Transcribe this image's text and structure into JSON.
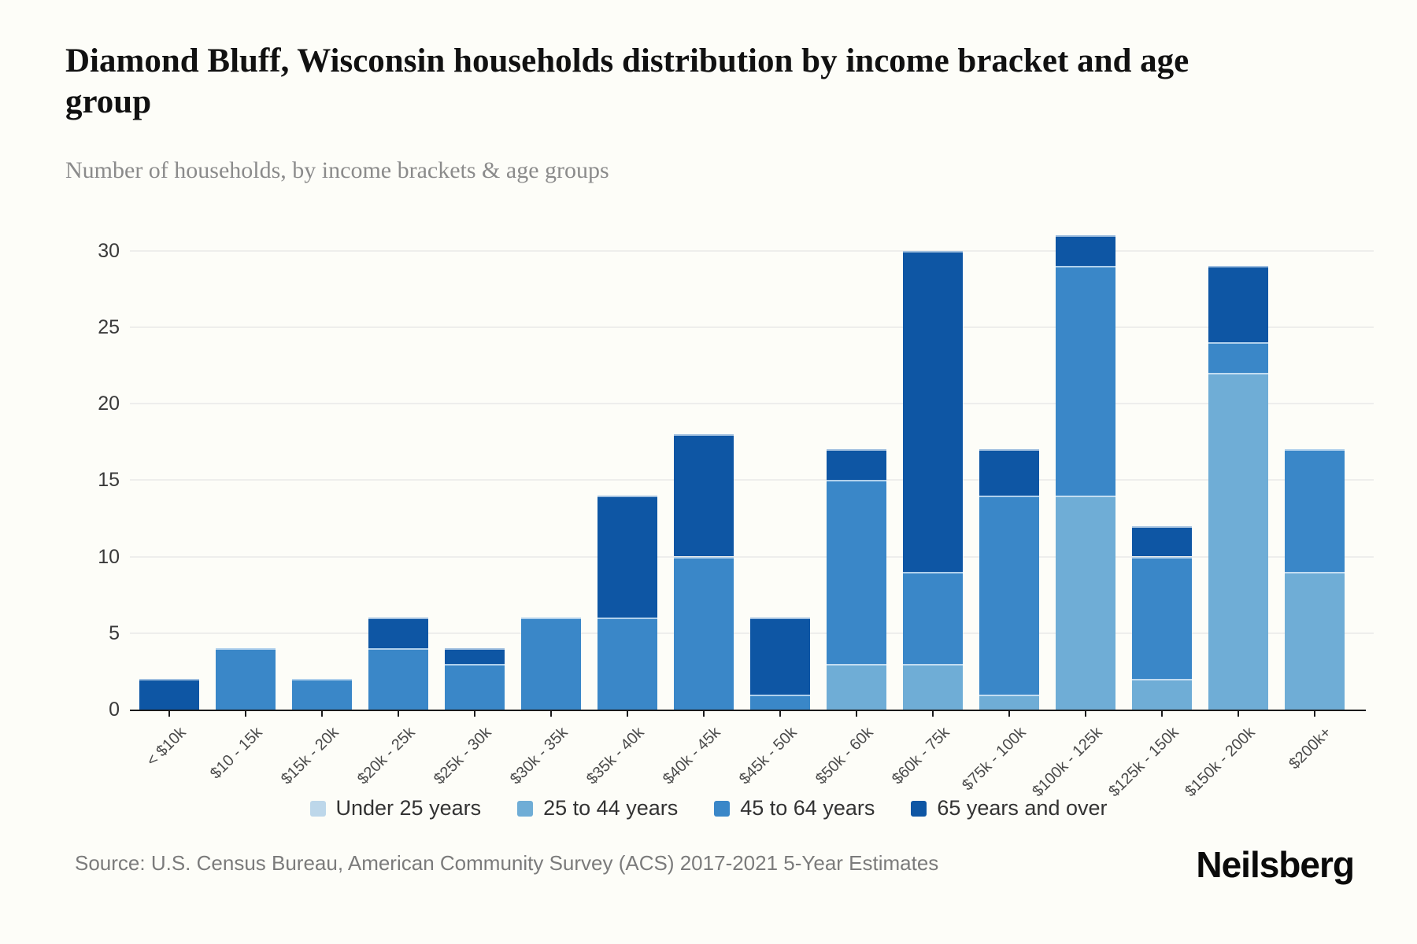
{
  "page": {
    "title": "Diamond Bluff, Wisconsin households distribution by income bracket and age group",
    "subtitle": "Number of households, by income brackets & age groups",
    "source": "Source: U.S. Census Bureau, American Community Survey (ACS) 2017-2021 5-Year Estimates",
    "brand": "Neilsberg"
  },
  "chart_data": {
    "type": "bar",
    "stacked": true,
    "title": "Diamond Bluff, Wisconsin households distribution by income bracket and age group",
    "subtitle": "Number of households, by income brackets & age groups",
    "xlabel": "",
    "ylabel": "Number of households",
    "ylim": [
      0,
      30
    ],
    "yticks": [
      0,
      5,
      10,
      15,
      20,
      25,
      30
    ],
    "grid": true,
    "legend_position": "bottom",
    "categories": [
      "< $10k",
      "$10 - 15k",
      "$15k - 20k",
      "$20k - 25k",
      "$25k - 30k",
      "$30k - 35k",
      "$35k - 40k",
      "$40k - 45k",
      "$45k - 50k",
      "$50k - 60k",
      "$60k - 75k",
      "$75k - 100k",
      "$100k - 125k",
      "$125k - 150k",
      "$150k - 200k",
      "$200k+"
    ],
    "series": [
      {
        "name": "Under 25 years",
        "color": "#bdd7ea",
        "values": [
          0,
          0,
          0,
          0,
          0,
          0,
          0,
          0,
          0,
          0,
          0,
          0,
          0,
          0,
          0,
          0
        ]
      },
      {
        "name": "25 to 44 years",
        "color": "#6fadd6",
        "values": [
          0,
          0,
          0,
          0,
          0,
          0,
          0,
          0,
          0,
          3,
          3,
          1,
          14,
          2,
          22,
          9
        ]
      },
      {
        "name": "45 to 64 years",
        "color": "#3a87c8",
        "values": [
          0,
          4,
          2,
          4,
          3,
          6,
          6,
          10,
          1,
          12,
          6,
          13,
          15,
          8,
          2,
          8
        ]
      },
      {
        "name": "65 years and over",
        "color": "#0e56a4",
        "values": [
          2,
          0,
          0,
          2,
          1,
          0,
          8,
          8,
          5,
          2,
          21,
          3,
          2,
          2,
          5,
          0
        ]
      }
    ],
    "totals": [
      2,
      4,
      2,
      6,
      4,
      6,
      14,
      18,
      6,
      17,
      30,
      17,
      31,
      12,
      29,
      17
    ]
  }
}
